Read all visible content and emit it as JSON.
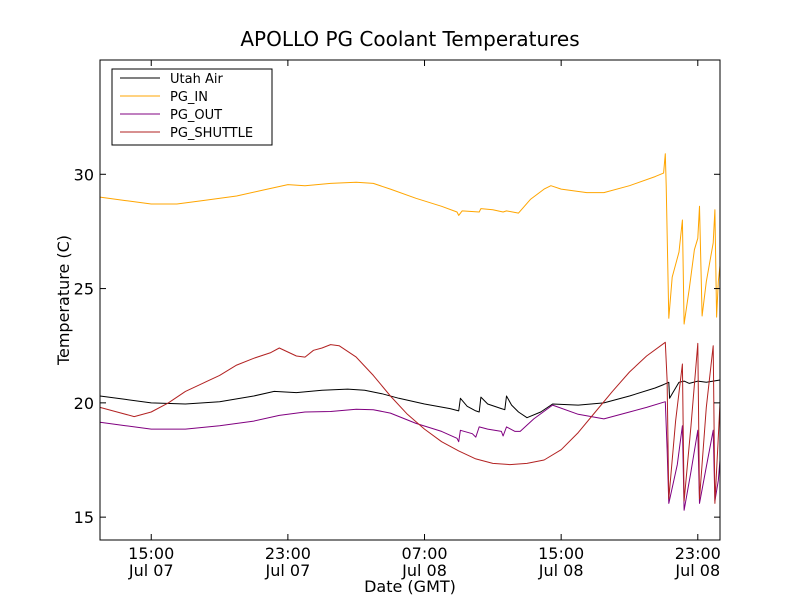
{
  "chart_data": {
    "type": "line",
    "title": "APOLLO PG Coolant Temperatures",
    "xlabel": "Date (GMT)",
    "ylabel": "Temperature (C)",
    "xunit": "hours since Jul 07 11:30 GMT",
    "xlim": [
      0,
      36.3
    ],
    "ylim": [
      14,
      35
    ],
    "grid": false,
    "legend_position": "top-left",
    "x_ticks": [
      {
        "x": 3.0,
        "time": "15:00",
        "date": "Jul 07"
      },
      {
        "x": 11.0,
        "time": "23:00",
        "date": "Jul 07"
      },
      {
        "x": 19.0,
        "time": "07:00",
        "date": "Jul 08"
      },
      {
        "x": 27.0,
        "time": "15:00",
        "date": "Jul 08"
      },
      {
        "x": 35.0,
        "time": "23:00",
        "date": "Jul 08"
      }
    ],
    "y_ticks": [
      {
        "value": 15,
        "label": "15"
      },
      {
        "value": 20,
        "label": "20"
      },
      {
        "value": 25,
        "label": "25"
      },
      {
        "value": 30,
        "label": "30"
      }
    ],
    "series": [
      {
        "name": "Utah Air",
        "color": "#000000",
        "points": [
          [
            0,
            20.3
          ],
          [
            1.5,
            20.15
          ],
          [
            3,
            20.0
          ],
          [
            5,
            19.95
          ],
          [
            7,
            20.05
          ],
          [
            9,
            20.3
          ],
          [
            10.2,
            20.5
          ],
          [
            11.5,
            20.45
          ],
          [
            13,
            20.55
          ],
          [
            14.5,
            20.6
          ],
          [
            15.5,
            20.55
          ],
          [
            16.5,
            20.4
          ],
          [
            17.5,
            20.2
          ],
          [
            19,
            19.95
          ],
          [
            20.5,
            19.75
          ],
          [
            21.0,
            19.65
          ],
          [
            21.1,
            20.2
          ],
          [
            21.5,
            19.85
          ],
          [
            22.0,
            19.65
          ],
          [
            22.2,
            19.6
          ],
          [
            22.3,
            20.25
          ],
          [
            22.7,
            19.95
          ],
          [
            23.5,
            19.75
          ],
          [
            23.7,
            19.7
          ],
          [
            23.8,
            20.3
          ],
          [
            24.1,
            19.9
          ],
          [
            24.5,
            19.6
          ],
          [
            25.0,
            19.35
          ],
          [
            25.8,
            19.6
          ],
          [
            26.5,
            19.95
          ],
          [
            28,
            19.9
          ],
          [
            29.5,
            20.0
          ],
          [
            31,
            20.3
          ],
          [
            32.5,
            20.65
          ],
          [
            33.0,
            20.8
          ],
          [
            33.3,
            20.9
          ],
          [
            33.35,
            20.2
          ],
          [
            33.5,
            20.4
          ],
          [
            33.9,
            20.9
          ],
          [
            34.2,
            20.95
          ],
          [
            34.5,
            20.85
          ],
          [
            35,
            20.95
          ],
          [
            35.5,
            20.9
          ],
          [
            36.3,
            21.0
          ]
        ]
      },
      {
        "name": "PG_IN",
        "color": "#ffa500",
        "points": [
          [
            0,
            29.0
          ],
          [
            1.5,
            28.85
          ],
          [
            3,
            28.7
          ],
          [
            4.5,
            28.7
          ],
          [
            6,
            28.85
          ],
          [
            8,
            29.05
          ],
          [
            9.5,
            29.3
          ],
          [
            11,
            29.55
          ],
          [
            12,
            29.5
          ],
          [
            13.5,
            29.6
          ],
          [
            15,
            29.65
          ],
          [
            16,
            29.6
          ],
          [
            17,
            29.35
          ],
          [
            18.5,
            28.95
          ],
          [
            20,
            28.6
          ],
          [
            20.9,
            28.35
          ],
          [
            21.0,
            28.2
          ],
          [
            21.2,
            28.4
          ],
          [
            22.2,
            28.35
          ],
          [
            22.3,
            28.5
          ],
          [
            23,
            28.45
          ],
          [
            23.6,
            28.35
          ],
          [
            23.8,
            28.4
          ],
          [
            24.5,
            28.3
          ],
          [
            25.2,
            28.9
          ],
          [
            26,
            29.35
          ],
          [
            26.4,
            29.5
          ],
          [
            27,
            29.35
          ],
          [
            28.5,
            29.2
          ],
          [
            29.5,
            29.2
          ],
          [
            31,
            29.5
          ],
          [
            32.5,
            29.9
          ],
          [
            33.0,
            30.05
          ],
          [
            33.1,
            30.9
          ],
          [
            33.15,
            29.5
          ],
          [
            33.3,
            23.7
          ],
          [
            33.5,
            25.5
          ],
          [
            33.9,
            26.6
          ],
          [
            34.1,
            28.0
          ],
          [
            34.2,
            23.45
          ],
          [
            34.5,
            25.0
          ],
          [
            34.8,
            26.7
          ],
          [
            35.0,
            27.2
          ],
          [
            35.1,
            28.6
          ],
          [
            35.25,
            23.8
          ],
          [
            35.5,
            25.3
          ],
          [
            35.9,
            27.0
          ],
          [
            36.0,
            28.45
          ],
          [
            36.1,
            23.75
          ],
          [
            36.2,
            25.3
          ],
          [
            36.3,
            26.0
          ]
        ]
      },
      {
        "name": "PG_OUT",
        "color": "#800080",
        "points": [
          [
            0,
            19.15
          ],
          [
            1.5,
            19.0
          ],
          [
            3,
            18.85
          ],
          [
            5,
            18.85
          ],
          [
            7,
            19.0
          ],
          [
            9,
            19.2
          ],
          [
            10.5,
            19.45
          ],
          [
            12,
            19.6
          ],
          [
            13.5,
            19.62
          ],
          [
            15,
            19.72
          ],
          [
            16,
            19.7
          ],
          [
            17,
            19.55
          ],
          [
            18.5,
            19.1
          ],
          [
            20,
            18.75
          ],
          [
            20.9,
            18.45
          ],
          [
            21.0,
            18.3
          ],
          [
            21.1,
            18.8
          ],
          [
            21.8,
            18.65
          ],
          [
            22.0,
            18.5
          ],
          [
            22.2,
            18.95
          ],
          [
            22.7,
            18.85
          ],
          [
            23.5,
            18.75
          ],
          [
            23.6,
            18.55
          ],
          [
            23.8,
            18.95
          ],
          [
            24.3,
            18.75
          ],
          [
            24.6,
            18.75
          ],
          [
            25.4,
            19.3
          ],
          [
            26.5,
            19.9
          ],
          [
            28,
            19.5
          ],
          [
            29.5,
            19.3
          ],
          [
            31,
            19.6
          ],
          [
            32,
            19.8
          ],
          [
            33.1,
            20.05
          ],
          [
            33.2,
            18.0
          ],
          [
            33.3,
            15.6
          ],
          [
            33.8,
            17.3
          ],
          [
            34.1,
            19.0
          ],
          [
            34.2,
            15.3
          ],
          [
            34.6,
            17.0
          ],
          [
            35.0,
            18.8
          ],
          [
            35.1,
            15.6
          ],
          [
            35.5,
            17.2
          ],
          [
            35.9,
            18.8
          ],
          [
            36.0,
            15.7
          ],
          [
            36.2,
            16.6
          ],
          [
            36.3,
            17.5
          ]
        ]
      },
      {
        "name": "PG_SHUTTLE",
        "color": "#b22222",
        "points": [
          [
            0,
            19.8
          ],
          [
            1,
            19.6
          ],
          [
            2,
            19.4
          ],
          [
            3,
            19.6
          ],
          [
            4,
            20.0
          ],
          [
            5,
            20.5
          ],
          [
            6,
            20.85
          ],
          [
            7,
            21.2
          ],
          [
            8,
            21.65
          ],
          [
            9,
            21.95
          ],
          [
            10,
            22.2
          ],
          [
            10.5,
            22.4
          ],
          [
            11.5,
            22.05
          ],
          [
            12,
            22.0
          ],
          [
            12.5,
            22.3
          ],
          [
            13,
            22.4
          ],
          [
            13.5,
            22.55
          ],
          [
            14,
            22.5
          ],
          [
            15,
            22.0
          ],
          [
            16,
            21.2
          ],
          [
            17,
            20.3
          ],
          [
            18,
            19.5
          ],
          [
            19,
            18.85
          ],
          [
            20,
            18.3
          ],
          [
            21,
            17.9
          ],
          [
            22,
            17.55
          ],
          [
            23,
            17.35
          ],
          [
            24,
            17.3
          ],
          [
            25,
            17.35
          ],
          [
            26,
            17.5
          ],
          [
            27,
            17.95
          ],
          [
            28,
            18.7
          ],
          [
            29,
            19.6
          ],
          [
            30,
            20.5
          ],
          [
            31,
            21.35
          ],
          [
            32,
            22.05
          ],
          [
            33.1,
            22.65
          ],
          [
            33.2,
            21.0
          ],
          [
            33.3,
            15.8
          ],
          [
            33.7,
            19.2
          ],
          [
            34.1,
            21.7
          ],
          [
            34.2,
            15.7
          ],
          [
            34.6,
            19.0
          ],
          [
            35.0,
            22.6
          ],
          [
            35.1,
            15.8
          ],
          [
            35.5,
            19.8
          ],
          [
            35.9,
            22.5
          ],
          [
            36.0,
            15.6
          ],
          [
            36.2,
            18.5
          ],
          [
            36.3,
            20.0
          ]
        ]
      }
    ]
  }
}
